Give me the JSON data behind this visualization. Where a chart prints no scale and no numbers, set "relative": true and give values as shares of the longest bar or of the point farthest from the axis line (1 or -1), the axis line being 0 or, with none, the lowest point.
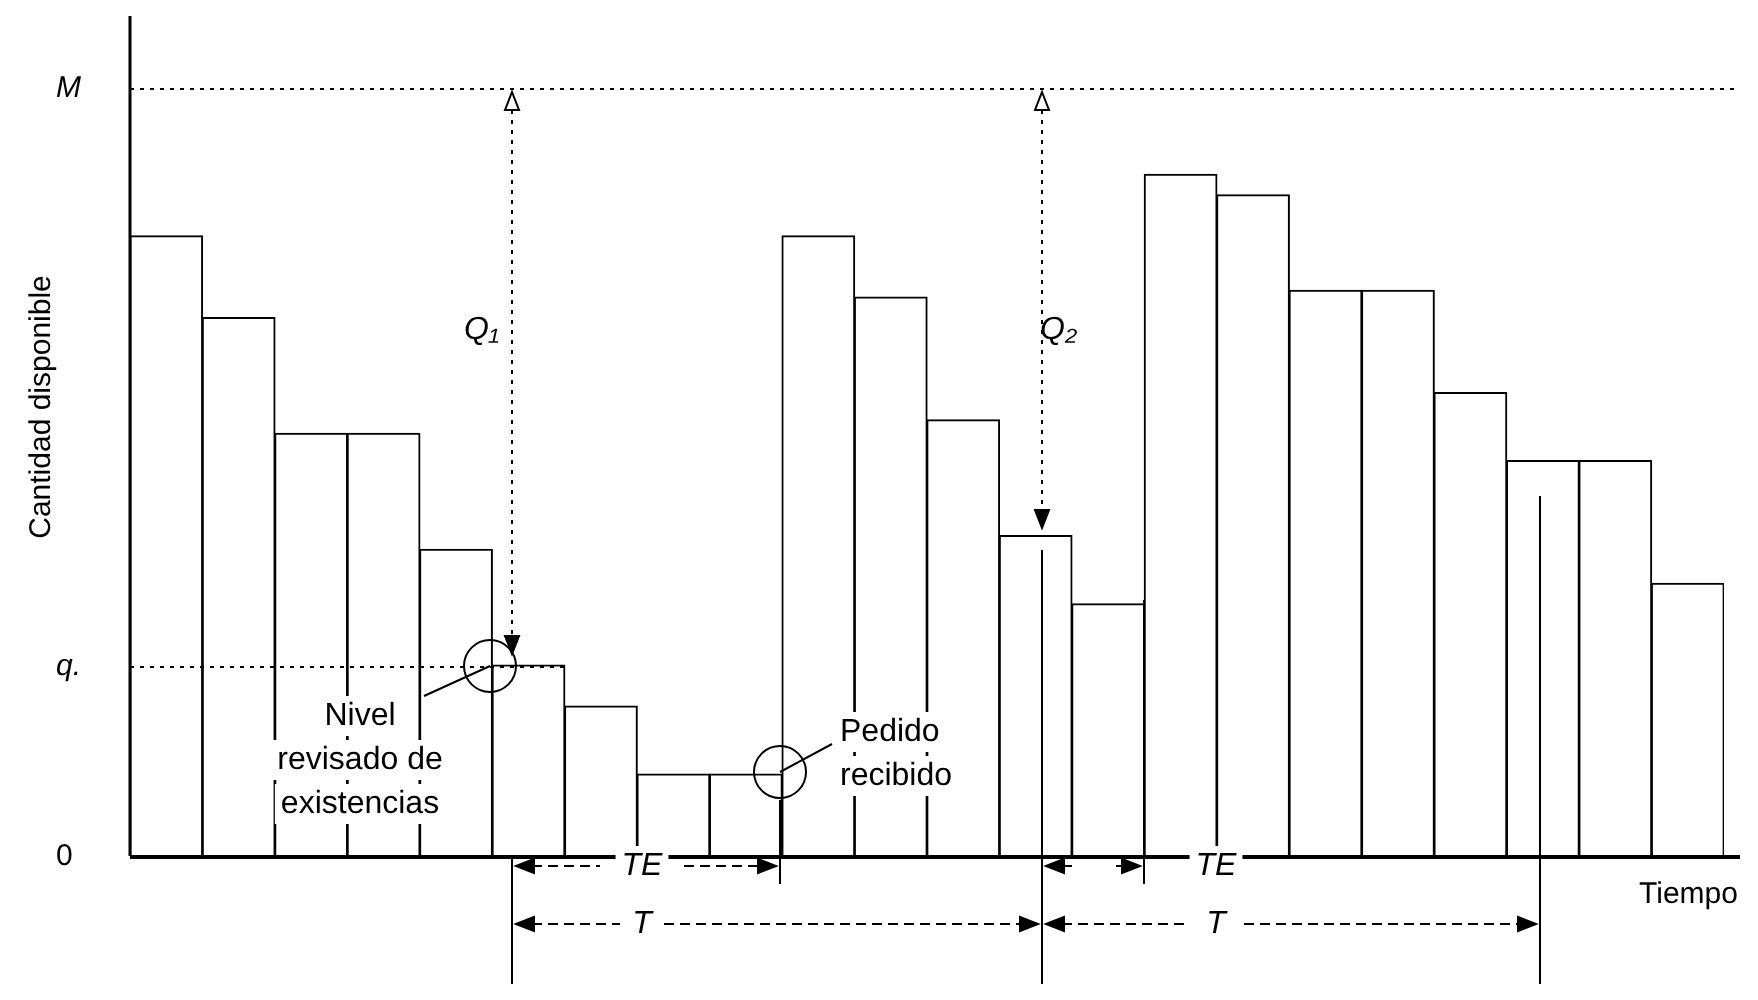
{
  "chart_data": {
    "type": "bar",
    "relative": true,
    "categories": [
      null,
      null,
      null,
      null,
      null,
      null,
      null,
      null,
      null,
      null,
      null,
      null,
      null,
      null,
      null,
      null,
      null,
      null,
      null,
      null,
      null,
      null
    ],
    "values": [
      0.91,
      0.79,
      0.62,
      0.62,
      0.45,
      0.28,
      0.22,
      0.12,
      0.12,
      0.91,
      0.82,
      0.64,
      0.47,
      0.37,
      1,
      0.97,
      0.83,
      0.83,
      0.68,
      0.58,
      0.58,
      0.4
    ],
    "color": "#ffffff",
    "xlabel": "Tiempo",
    "ylabel": "Cantidad disponible",
    "ref_lines": [
      {
        "axis": "y",
        "value": 1.126,
        "label": "M",
        "line_style": "dotted"
      },
      {
        "axis": "y",
        "value": 0.279,
        "label": "q.",
        "line_style": "dotted"
      },
      {
        "axis": "y",
        "value": 0,
        "label": "0",
        "line_style": "solid"
      }
    ],
    "annotations": [
      "Q₁",
      "Q₂",
      "Nivel\nrevisado de\nexistencias",
      "Pedido\nrecibido",
      "TE",
      "T",
      "TE",
      "T"
    ]
  }
}
